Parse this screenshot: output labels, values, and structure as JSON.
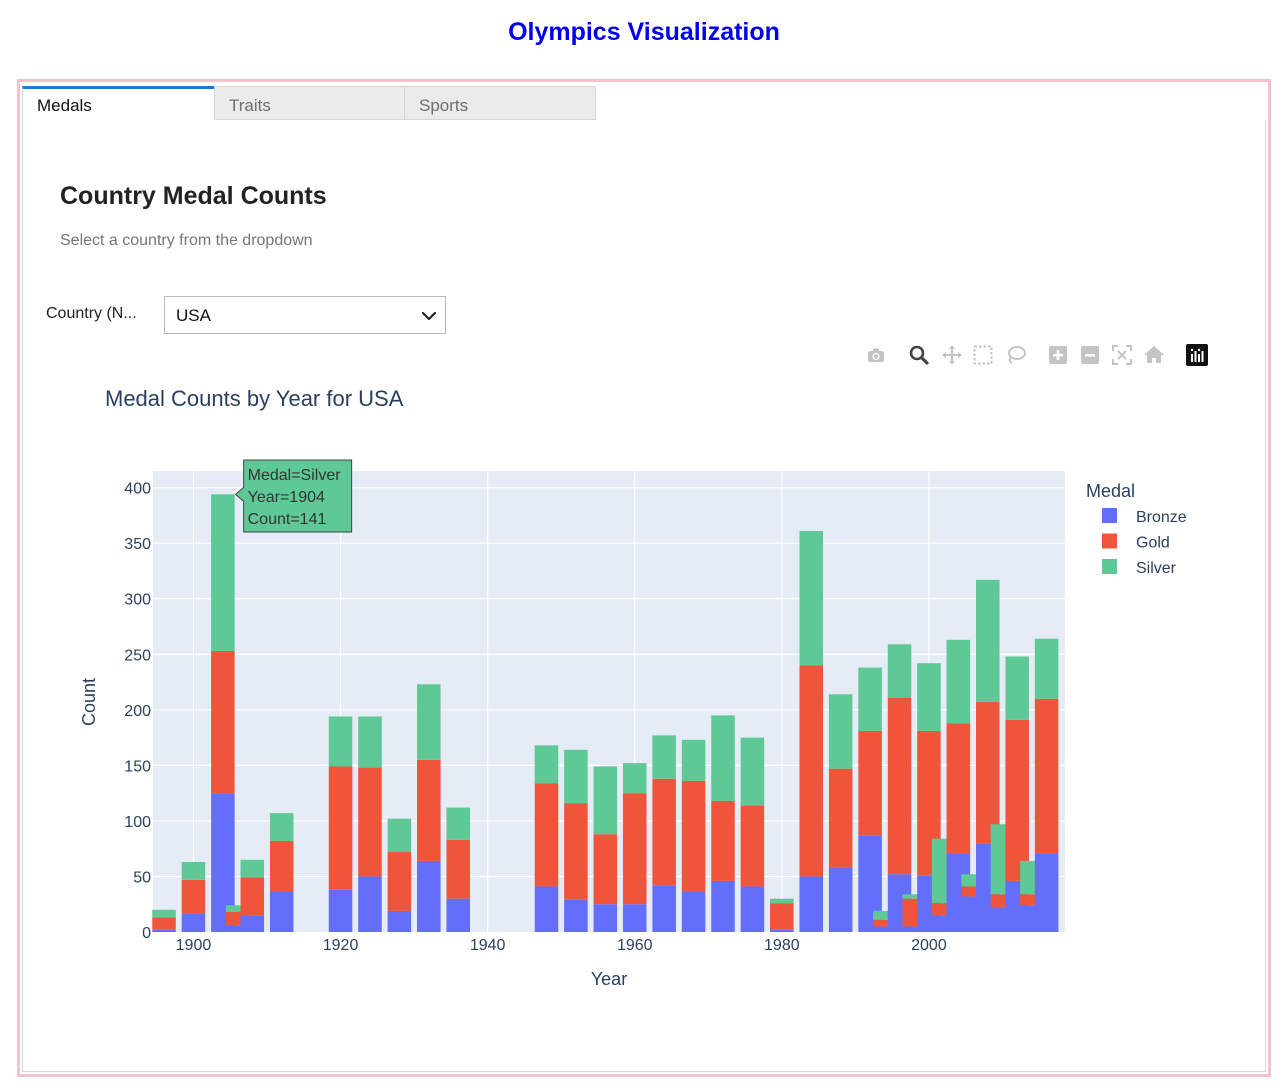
{
  "app": {
    "title": "Olympics Visualization"
  },
  "tabs": [
    {
      "label": "Medals",
      "active": true
    },
    {
      "label": "Traits",
      "active": false
    },
    {
      "label": "Sports",
      "active": false
    }
  ],
  "section": {
    "title": "Country Medal Counts",
    "subtitle": "Select a country from the dropdown"
  },
  "country_filter": {
    "label": "Country (N...",
    "selected": "USA"
  },
  "modebar_icons": [
    "camera-icon",
    "zoom-icon",
    "pan-icon",
    "box-select-icon",
    "lasso-icon",
    "zoom-in-icon",
    "zoom-out-icon",
    "autoscale-icon",
    "reset-axes-icon",
    "plotly-logo-icon"
  ],
  "tooltip": {
    "line1": "Medal=Silver",
    "line2": "Year=1904",
    "line3": "Count=141",
    "color": "#5ec896"
  },
  "chart_data": {
    "type": "bar",
    "stacked": true,
    "title": "Medal Counts by Year for USA",
    "xlabel": "Year",
    "ylabel": "Count",
    "xlim": [
      1894.5,
      2018.5
    ],
    "ylim": [
      0,
      415
    ],
    "xticks": [
      1900,
      1920,
      1940,
      1960,
      1980,
      2000
    ],
    "yticks": [
      0,
      50,
      100,
      150,
      200,
      250,
      300,
      350,
      400
    ],
    "grid": true,
    "legend": {
      "title": "Medal",
      "placement": "right"
    },
    "x": [
      1896,
      1900,
      1904,
      1906,
      1908,
      1912,
      1920,
      1924,
      1928,
      1932,
      1936,
      1948,
      1952,
      1956,
      1960,
      1964,
      1968,
      1972,
      1976,
      1980,
      1984,
      1988,
      1992,
      1994,
      1996,
      1998,
      2000,
      2002,
      2004,
      2006,
      2008,
      2010,
      2012,
      2014,
      2016
    ],
    "series": [
      {
        "name": "Bronze",
        "color": "#636efa",
        "values": [
          2,
          17,
          125,
          6,
          15,
          36,
          38,
          50,
          19,
          64,
          30,
          41,
          29,
          25,
          25,
          42,
          36,
          46,
          41,
          2,
          50,
          58,
          87,
          5,
          52,
          5,
          51,
          15,
          71,
          32,
          80,
          22,
          46,
          24,
          71
        ]
      },
      {
        "name": "Gold",
        "color": "#ef553b",
        "values": [
          11,
          30,
          128,
          12,
          34,
          46,
          111,
          98,
          53,
          91,
          53,
          93,
          87,
          63,
          100,
          96,
          100,
          72,
          73,
          24,
          190,
          89,
          94,
          6,
          159,
          25,
          130,
          11,
          117,
          9,
          127,
          12,
          145,
          10,
          139
        ]
      },
      {
        "name": "Silver",
        "color": "#5ec896",
        "values": [
          7,
          16,
          141,
          6,
          16,
          25,
          45,
          46,
          30,
          68,
          29,
          34,
          48,
          61,
          27,
          39,
          37,
          77,
          61,
          4,
          121,
          67,
          57,
          8,
          48,
          4,
          61,
          58,
          75,
          11,
          110,
          63,
          57,
          30,
          54
        ]
      }
    ]
  }
}
